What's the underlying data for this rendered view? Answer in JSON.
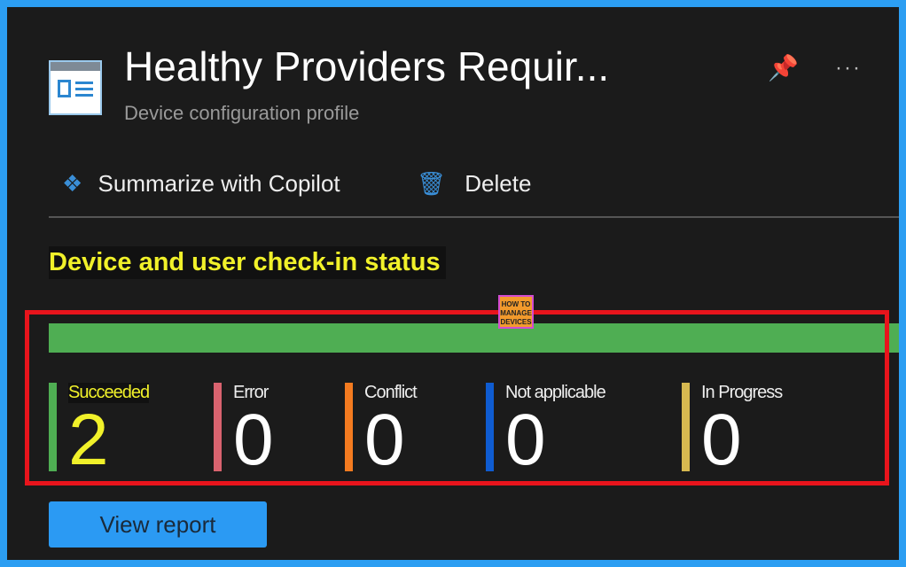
{
  "header": {
    "title": "Healthy Providers Requir...",
    "subtitle": "Device configuration profile",
    "pin_icon": "pin-icon",
    "more_label": "···"
  },
  "toolbar": {
    "copilot_label": "Summarize with Copilot",
    "delete_label": "Delete"
  },
  "section": {
    "heading": "Device and user check-in status",
    "watermark": "HOW TO MANAGE DEVICES"
  },
  "progress": {
    "succeeded_fraction": 1.0,
    "color": "#4fae53"
  },
  "statuses": [
    {
      "label": "Succeeded",
      "value": "2",
      "color": "#4fae53"
    },
    {
      "label": "Error",
      "value": "0",
      "color": "#d9636f"
    },
    {
      "label": "Conflict",
      "value": "0",
      "color": "#f47b20"
    },
    {
      "label": "Not applicable",
      "value": "0",
      "color": "#0f5cd1"
    },
    {
      "label": "In Progress",
      "value": "0",
      "color": "#d6b850"
    }
  ],
  "button": {
    "view_report": "View report"
  },
  "colors": {
    "frame": "#2c9ef2",
    "background": "#1b1b1b",
    "highlight": "#f1f12a",
    "annotation": "#e8141c"
  }
}
